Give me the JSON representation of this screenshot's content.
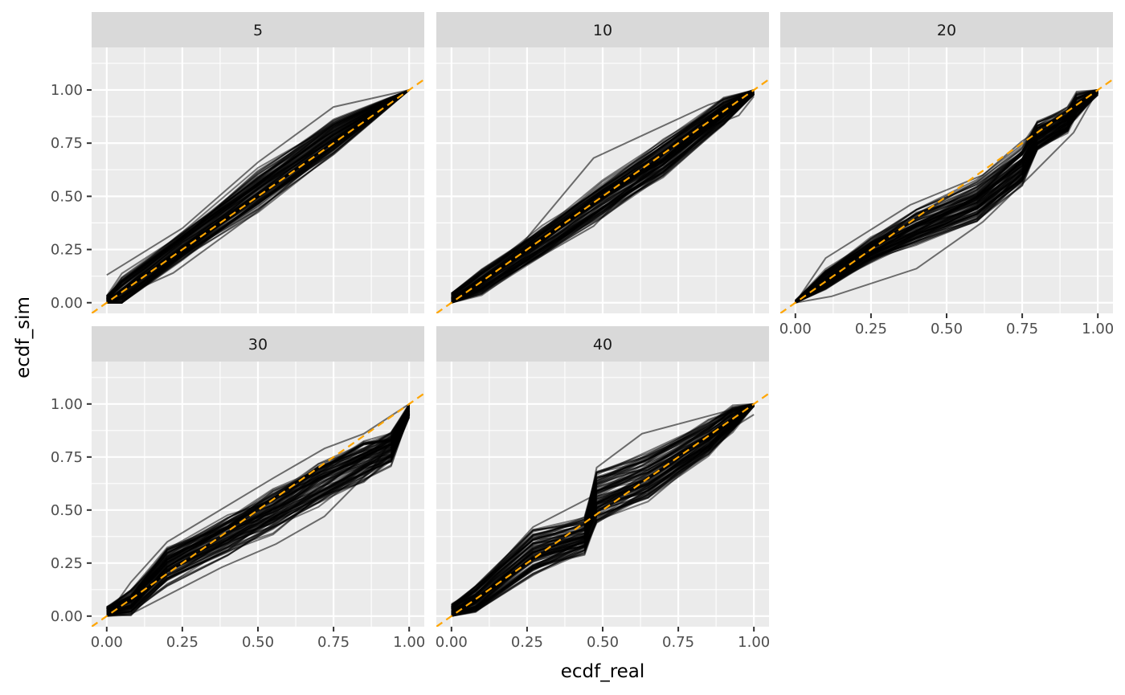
{
  "chart_data": {
    "type": "line",
    "layout": "facet_wrap",
    "xlabel": "ecdf_real",
    "ylabel": "ecdf_sim",
    "xlim": [
      -0.05,
      1.05
    ],
    "ylim": [
      -0.05,
      1.2
    ],
    "x_ticks": [
      "0.00",
      "0.25",
      "0.50",
      "0.75",
      "1.00"
    ],
    "y_ticks": [
      "0.00",
      "0.25",
      "0.50",
      "0.75",
      "1.00"
    ],
    "x_tick_values": [
      0,
      0.25,
      0.5,
      0.75,
      1
    ],
    "y_tick_values": [
      0,
      0.25,
      0.5,
      0.75,
      1
    ],
    "grid": true,
    "reference_line": {
      "type": "identity",
      "slope": 1,
      "intercept": 0,
      "color": "#ffa500",
      "style": "dashed"
    },
    "line_color": "#000000",
    "panel_background": "#ebebeb",
    "strip_background": "#d9d9d9",
    "panels": [
      {
        "strip": "5",
        "center": [
          [
            0,
            0
          ],
          [
            0.05,
            0.05
          ],
          [
            0.25,
            0.27
          ],
          [
            0.5,
            0.53
          ],
          [
            0.75,
            0.78
          ],
          [
            1,
            1
          ]
        ],
        "band": [
          [
            0,
            0.03
          ],
          [
            0.05,
            0.07
          ],
          [
            0.25,
            0.06
          ],
          [
            0.5,
            0.08
          ],
          [
            0.75,
            0.07
          ],
          [
            1,
            0
          ]
        ],
        "outliers": [
          [
            [
              0,
              0.13
            ],
            [
              0.25,
              0.35
            ],
            [
              0.5,
              0.66
            ],
            [
              0.75,
              0.92
            ],
            [
              1,
              1
            ]
          ],
          [
            [
              0,
              0.0
            ],
            [
              0.22,
              0.14
            ],
            [
              0.5,
              0.43
            ],
            [
              0.75,
              0.74
            ],
            [
              1,
              1
            ]
          ]
        ]
      },
      {
        "strip": "10",
        "center": [
          [
            0,
            0.01
          ],
          [
            0.1,
            0.1
          ],
          [
            0.3,
            0.29
          ],
          [
            0.5,
            0.49
          ],
          [
            0.7,
            0.68
          ],
          [
            0.9,
            0.9
          ],
          [
            1,
            0.99
          ]
        ],
        "band": [
          [
            0,
            0.03
          ],
          [
            0.1,
            0.05
          ],
          [
            0.3,
            0.06
          ],
          [
            0.5,
            0.07
          ],
          [
            0.7,
            0.07
          ],
          [
            0.9,
            0.05
          ],
          [
            1,
            0.01
          ]
        ],
        "outliers": [
          [
            [
              0,
              0.02
            ],
            [
              0.2,
              0.22
            ],
            [
              0.47,
              0.68
            ],
            [
              0.85,
              0.93
            ],
            [
              1,
              1
            ]
          ],
          [
            [
              0,
              0.0
            ],
            [
              0.15,
              0.1
            ],
            [
              0.47,
              0.36
            ],
            [
              0.75,
              0.77
            ],
            [
              0.95,
              0.88
            ],
            [
              1,
              0.97
            ]
          ],
          [
            [
              0,
              0.0
            ],
            [
              0.2,
              0.17
            ],
            [
              0.5,
              0.43
            ],
            [
              0.7,
              0.63
            ],
            [
              1,
              0.98
            ]
          ]
        ]
      },
      {
        "strip": "20",
        "center": [
          [
            0,
            0
          ],
          [
            0.1,
            0.11
          ],
          [
            0.25,
            0.25
          ],
          [
            0.4,
            0.36
          ],
          [
            0.6,
            0.48
          ],
          [
            0.75,
            0.65
          ],
          [
            0.8,
            0.78
          ],
          [
            0.9,
            0.86
          ],
          [
            0.93,
            0.93
          ],
          [
            1,
            1
          ]
        ],
        "band": [
          [
            0,
            0.01
          ],
          [
            0.1,
            0.04
          ],
          [
            0.25,
            0.05
          ],
          [
            0.4,
            0.07
          ],
          [
            0.6,
            0.08
          ],
          [
            0.75,
            0.08
          ],
          [
            0.8,
            0.06
          ],
          [
            0.9,
            0.05
          ],
          [
            0.93,
            0.05
          ],
          [
            1,
            0.02
          ]
        ],
        "outliers": [
          [
            [
              0,
              0.0
            ],
            [
              0.12,
              0.03
            ],
            [
              0.4,
              0.16
            ],
            [
              0.62,
              0.38
            ],
            [
              0.78,
              0.6
            ],
            [
              0.92,
              0.8
            ],
            [
              1,
              1
            ]
          ],
          [
            [
              0,
              0.0
            ],
            [
              0.1,
              0.21
            ],
            [
              0.38,
              0.46
            ],
            [
              0.62,
              0.6
            ],
            [
              0.75,
              0.76
            ],
            [
              0.9,
              0.9
            ],
            [
              1,
              1
            ]
          ]
        ]
      },
      {
        "strip": "30",
        "center": [
          [
            0,
            0.02
          ],
          [
            0.08,
            0.06
          ],
          [
            0.2,
            0.23
          ],
          [
            0.4,
            0.38
          ],
          [
            0.55,
            0.49
          ],
          [
            0.7,
            0.62
          ],
          [
            0.85,
            0.73
          ],
          [
            0.94,
            0.79
          ],
          [
            1,
            0.97
          ]
        ],
        "band": [
          [
            0,
            0.02
          ],
          [
            0.08,
            0.05
          ],
          [
            0.2,
            0.08
          ],
          [
            0.4,
            0.08
          ],
          [
            0.55,
            0.09
          ],
          [
            0.7,
            0.09
          ],
          [
            0.85,
            0.08
          ],
          [
            0.94,
            0.07
          ],
          [
            1,
            0.03
          ]
        ],
        "outliers": [
          [
            [
              0,
              0.0
            ],
            [
              0.08,
              0.16
            ],
            [
              0.2,
              0.35
            ],
            [
              0.55,
              0.65
            ],
            [
              0.72,
              0.79
            ],
            [
              0.85,
              0.86
            ],
            [
              1,
              1
            ]
          ],
          [
            [
              0,
              0.0
            ],
            [
              0.08,
              0.01
            ],
            [
              0.38,
              0.23
            ],
            [
              0.56,
              0.34
            ],
            [
              0.72,
              0.47
            ],
            [
              0.88,
              0.7
            ],
            [
              1,
              0.95
            ]
          ]
        ]
      },
      {
        "strip": "40",
        "center": [
          [
            0,
            0.02
          ],
          [
            0.08,
            0.08
          ],
          [
            0.27,
            0.3
          ],
          [
            0.44,
            0.38
          ],
          [
            0.48,
            0.56
          ],
          [
            0.65,
            0.66
          ],
          [
            0.85,
            0.84
          ],
          [
            0.93,
            0.93
          ],
          [
            1,
            1
          ]
        ],
        "band": [
          [
            0,
            0.03
          ],
          [
            0.08,
            0.05
          ],
          [
            0.27,
            0.09
          ],
          [
            0.44,
            0.07
          ],
          [
            0.48,
            0.1
          ],
          [
            0.65,
            0.09
          ],
          [
            0.85,
            0.07
          ],
          [
            0.93,
            0.05
          ],
          [
            1,
            0.01
          ]
        ],
        "outliers": [
          [
            [
              0,
              0.0
            ],
            [
              0.08,
              0.03
            ],
            [
              0.27,
              0.2
            ],
            [
              0.44,
              0.31
            ],
            [
              0.48,
              0.44
            ],
            [
              0.63,
              0.57
            ],
            [
              0.92,
              0.88
            ],
            [
              1,
              0.95
            ]
          ],
          [
            [
              0,
              0.0
            ],
            [
              0.27,
              0.42
            ],
            [
              0.46,
              0.56
            ],
            [
              0.48,
              0.7
            ],
            [
              0.63,
              0.86
            ],
            [
              0.92,
              0.97
            ],
            [
              1,
              1
            ]
          ]
        ]
      }
    ]
  }
}
